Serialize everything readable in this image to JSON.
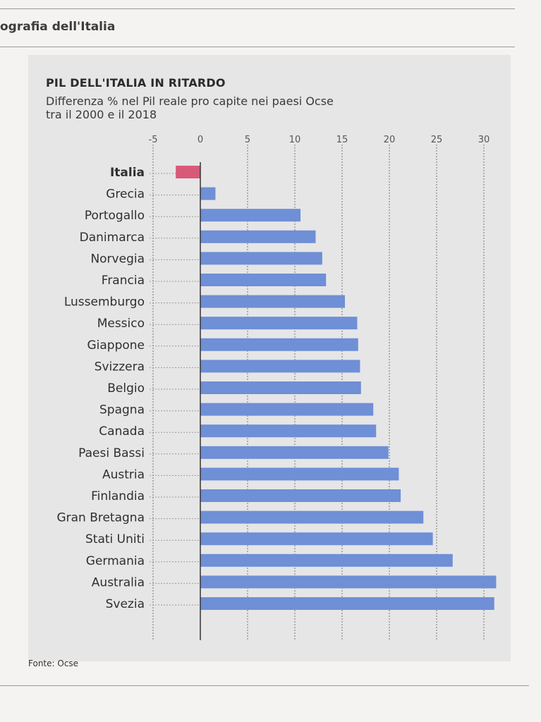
{
  "header": {
    "title": "ografia dell'Italia"
  },
  "chart_data": {
    "type": "bar",
    "orientation": "horizontal",
    "title": "PIL DELL'ITALIA IN RITARDO",
    "subtitle_lines": [
      "Differenza % nel Pil reale pro capite nei paesi Ocse",
      "tra il 2000 e il 2018"
    ],
    "source": "Fonte: Ocse",
    "xlabel": "",
    "ylabel": "",
    "xlim": [
      -5,
      30
    ],
    "xticks": [
      -5,
      0,
      5,
      10,
      15,
      20,
      25,
      30
    ],
    "grid": true,
    "highlight_category": "Italia",
    "categories": [
      "Italia",
      "Grecia",
      "Portogallo",
      "Danimarca",
      "Norvegia",
      "Francia",
      "Lussemburgo",
      "Messico",
      "Giappone",
      "Svizzera",
      "Belgio",
      "Spagna",
      "Canada",
      "Paesi Bassi",
      "Austria",
      "Finlandia",
      "Gran Bretagna",
      "Stati Uniti",
      "Germania",
      "Australia",
      "Svezia"
    ],
    "values": [
      -2.6,
      1.6,
      10.6,
      12.2,
      12.9,
      13.3,
      15.3,
      16.6,
      16.7,
      16.9,
      17.0,
      18.3,
      18.6,
      19.9,
      21.0,
      21.2,
      23.6,
      24.6,
      26.7,
      31.3,
      31.1
    ],
    "colors": {
      "highlight": "#d95a78",
      "bar": "#6f8fd6",
      "axis": "#333333"
    }
  }
}
